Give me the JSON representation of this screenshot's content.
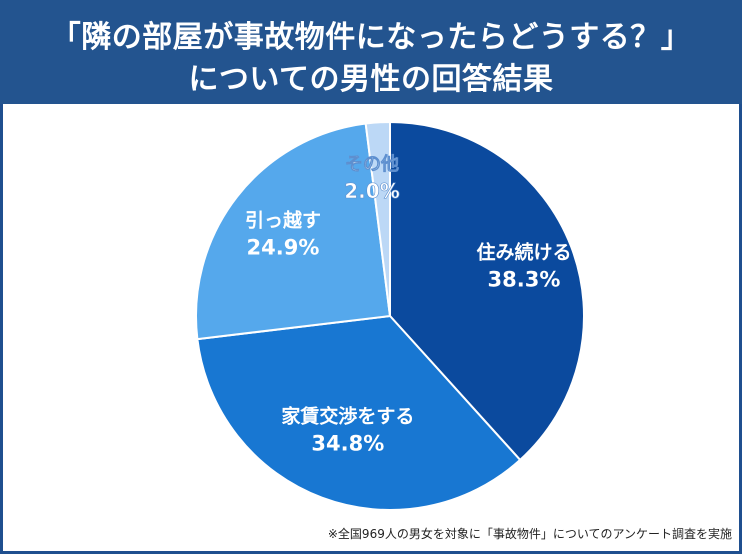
{
  "header": {
    "line1": "「隣の部屋が事故物件になったらどうする？」",
    "line2": "についての男性の回答結果"
  },
  "footnote": "※全国969人の男女を対象に「事故物件」についてのアンケート調査を実施",
  "chart_data": {
    "type": "pie",
    "title": "「隣の部屋が事故物件になったらどうする？」についての男性の回答結果",
    "start": "top",
    "direction": "clockwise",
    "slices": [
      {
        "label": "住み続ける",
        "value": 38.3,
        "value_text": "38.3%",
        "color": "#0b4a9e"
      },
      {
        "label": "家賃交渉をする",
        "value": 34.8,
        "value_text": "34.8%",
        "color": "#1877d2"
      },
      {
        "label": "引っ越す",
        "value": 24.9,
        "value_text": "24.9%",
        "color": "#55a8ec"
      },
      {
        "label": "その他",
        "value": 2.0,
        "value_text": "2.0%",
        "color": "#bcd8f6"
      }
    ]
  }
}
